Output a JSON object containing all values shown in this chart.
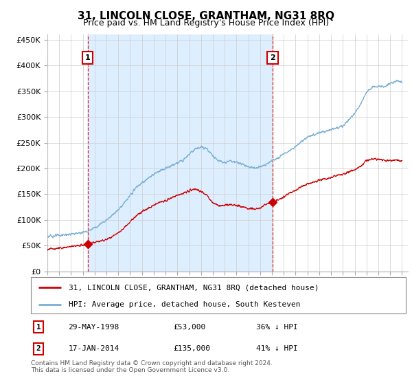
{
  "title": "31, LINCOLN CLOSE, GRANTHAM, NG31 8RQ",
  "subtitle": "Price paid vs. HM Land Registry's House Price Index (HPI)",
  "ylim": [
    0,
    460000
  ],
  "yticks": [
    0,
    50000,
    100000,
    150000,
    200000,
    250000,
    300000,
    350000,
    400000,
    450000
  ],
  "ytick_labels": [
    "£0",
    "£50K",
    "£100K",
    "£150K",
    "£200K",
    "£250K",
    "£300K",
    "£350K",
    "£400K",
    "£450K"
  ],
  "xlim_start": 1995.0,
  "xlim_end": 2025.5,
  "sale1_x": 1998.41,
  "sale1_y": 53000,
  "sale1_label": "1",
  "sale1_date": "29-MAY-1998",
  "sale1_price": "£53,000",
  "sale1_hpi": "36% ↓ HPI",
  "sale2_x": 2014.04,
  "sale2_y": 135000,
  "sale2_label": "2",
  "sale2_date": "17-JAN-2014",
  "sale2_price": "£135,000",
  "sale2_hpi": "41% ↓ HPI",
  "legend_line1": "31, LINCOLN CLOSE, GRANTHAM, NG31 8RQ (detached house)",
  "legend_line2": "HPI: Average price, detached house, South Kesteven",
  "footer": "Contains HM Land Registry data © Crown copyright and database right 2024.\nThis data is licensed under the Open Government Licence v3.0.",
  "hpi_color": "#7bafd4",
  "price_color": "#cc0000",
  "shade_color": "#ddeeff",
  "background_color": "#ffffff",
  "grid_color": "#cccccc",
  "hpi_key_years": [
    1995.0,
    1995.5,
    1996.0,
    1996.5,
    1997.0,
    1997.5,
    1998.0,
    1998.5,
    1999.0,
    1999.5,
    2000.0,
    2000.5,
    2001.0,
    2001.5,
    2002.0,
    2002.5,
    2003.0,
    2003.5,
    2004.0,
    2004.5,
    2005.0,
    2005.5,
    2006.0,
    2006.5,
    2007.0,
    2007.5,
    2008.0,
    2008.5,
    2009.0,
    2009.5,
    2010.0,
    2010.5,
    2011.0,
    2011.5,
    2012.0,
    2012.5,
    2013.0,
    2013.5,
    2014.0,
    2014.5,
    2015.0,
    2015.5,
    2016.0,
    2016.5,
    2017.0,
    2017.5,
    2018.0,
    2018.5,
    2019.0,
    2019.5,
    2020.0,
    2020.5,
    2021.0,
    2021.5,
    2022.0,
    2022.5,
    2023.0,
    2023.5,
    2024.0,
    2024.5,
    2025.0
  ],
  "hpi_key_prices": [
    68000,
    69000,
    70000,
    71000,
    72000,
    74000,
    76000,
    79000,
    85000,
    92000,
    100000,
    110000,
    120000,
    133000,
    147000,
    163000,
    172000,
    180000,
    188000,
    196000,
    200000,
    205000,
    210000,
    218000,
    228000,
    238000,
    242000,
    238000,
    225000,
    215000,
    212000,
    215000,
    212000,
    208000,
    203000,
    201000,
    203000,
    208000,
    215000,
    220000,
    228000,
    235000,
    242000,
    252000,
    260000,
    265000,
    270000,
    272000,
    275000,
    280000,
    282000,
    295000,
    308000,
    325000,
    348000,
    358000,
    360000,
    358000,
    365000,
    370000,
    368000
  ],
  "price_key_years": [
    1995.0,
    1995.5,
    1996.0,
    1996.5,
    1997.0,
    1997.5,
    1998.0,
    1998.41,
    1999.0,
    1999.5,
    2000.0,
    2000.5,
    2001.0,
    2001.5,
    2002.0,
    2002.5,
    2003.0,
    2003.5,
    2004.0,
    2004.5,
    2005.0,
    2005.5,
    2006.0,
    2006.5,
    2007.0,
    2007.5,
    2008.0,
    2008.5,
    2009.0,
    2009.5,
    2010.0,
    2010.5,
    2011.0,
    2011.5,
    2012.0,
    2012.5,
    2013.0,
    2013.5,
    2014.04,
    2014.5,
    2015.0,
    2015.5,
    2016.0,
    2016.5,
    2017.0,
    2017.5,
    2018.0,
    2018.5,
    2019.0,
    2019.5,
    2020.0,
    2020.5,
    2021.0,
    2021.5,
    2022.0,
    2022.5,
    2023.0,
    2023.5,
    2024.0,
    2024.5,
    2025.0
  ],
  "price_key_prices": [
    43000,
    44000,
    45000,
    46000,
    48000,
    50000,
    51000,
    53000,
    56000,
    59000,
    62000,
    68000,
    75000,
    85000,
    96000,
    108000,
    116000,
    122000,
    128000,
    135000,
    138000,
    142000,
    148000,
    152000,
    157000,
    160000,
    156000,
    148000,
    133000,
    128000,
    128000,
    130000,
    128000,
    125000,
    122000,
    121000,
    123000,
    130000,
    135000,
    138000,
    145000,
    152000,
    158000,
    165000,
    170000,
    173000,
    177000,
    180000,
    183000,
    186000,
    188000,
    193000,
    198000,
    205000,
    215000,
    218000,
    218000,
    215000,
    215000,
    216000,
    215000
  ]
}
